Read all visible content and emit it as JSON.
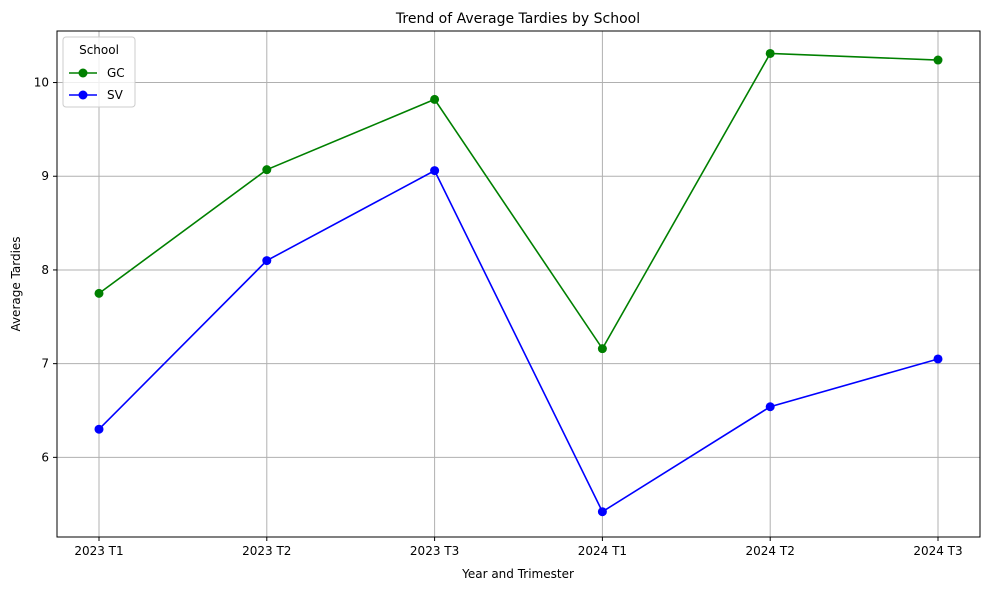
{
  "chart_data": {
    "type": "line",
    "title": "Trend of Average Tardies by School",
    "xlabel": "Year and Trimester",
    "ylabel": "Average Tardies",
    "categories": [
      "2023 T1",
      "2023 T2",
      "2023 T3",
      "2024 T1",
      "2024 T2",
      "2024 T3"
    ],
    "ylim": [
      5.15,
      10.55
    ],
    "yticks": [
      6,
      7,
      8,
      9,
      10
    ],
    "grid": true,
    "legend": {
      "title": "School",
      "placement": "top-left"
    },
    "series": [
      {
        "name": "GC",
        "color": "#008000",
        "values": [
          7.75,
          9.07,
          9.82,
          7.16,
          10.31,
          10.24
        ]
      },
      {
        "name": "SV",
        "color": "#0000ff",
        "values": [
          6.3,
          8.1,
          9.06,
          5.42,
          6.54,
          7.05
        ]
      }
    ]
  }
}
